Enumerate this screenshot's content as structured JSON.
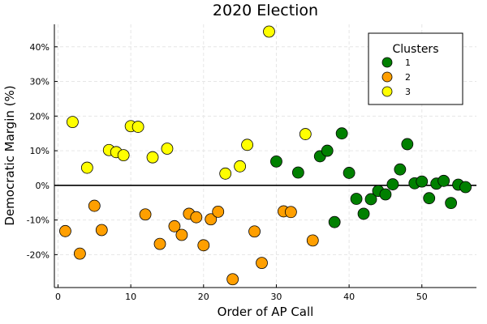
{
  "chart_data": {
    "type": "scatter",
    "title": "2020 Election",
    "xlabel": "Order of AP Call",
    "ylabel": "Democratic Margin (%)",
    "xlim": [
      -0.5,
      57.5
    ],
    "ylim": [
      -29.5,
      46.5
    ],
    "xticks": [
      0,
      10,
      20,
      30,
      40,
      50
    ],
    "yticks": [
      -20,
      -10,
      0,
      10,
      20,
      30,
      40
    ],
    "ytick_labels": [
      "-20%",
      "-10%",
      "0%",
      "10%",
      "20%",
      "30%",
      "40%"
    ],
    "grid": true,
    "zero_line": true,
    "legend": {
      "title": "Clusters",
      "placement": "top-right"
    },
    "series": [
      {
        "name": "1",
        "color": "#008000",
        "x": [
          30,
          33,
          36,
          37,
          38,
          39,
          40,
          41,
          42,
          43,
          44,
          45,
          46,
          47,
          48,
          49,
          50,
          51,
          52,
          53,
          54,
          55,
          56
        ],
        "y": [
          6.9,
          3.7,
          8.4,
          10.0,
          -10.6,
          15.0,
          3.6,
          -3.9,
          -8.2,
          -4.0,
          -1.6,
          -2.6,
          0.3,
          4.6,
          11.9,
          0.6,
          1.1,
          -3.7,
          0.5,
          1.3,
          -5.1,
          0.2,
          -0.5
        ]
      },
      {
        "name": "2",
        "color": "#FF9F00",
        "x": [
          1,
          3,
          5,
          6,
          12,
          14,
          16,
          17,
          18,
          19,
          20,
          21,
          22,
          24,
          27,
          28,
          31,
          32,
          35
        ],
        "y": [
          -13.2,
          -19.7,
          -5.9,
          -12.9,
          -8.4,
          -16.9,
          -11.8,
          -14.3,
          -8.2,
          -9.2,
          -17.3,
          -9.8,
          -7.6,
          -27.1,
          -13.3,
          -22.4,
          -7.5,
          -7.7,
          -15.9
        ]
      },
      {
        "name": "3",
        "color": "#FFFF00",
        "x": [
          2,
          4,
          7,
          8,
          9,
          10,
          11,
          13,
          15,
          23,
          25,
          26,
          29,
          34
        ],
        "y": [
          18.3,
          5.1,
          10.2,
          9.6,
          8.7,
          17.1,
          16.9,
          8.1,
          10.6,
          3.4,
          5.5,
          11.7,
          44.4,
          14.8
        ]
      }
    ]
  }
}
